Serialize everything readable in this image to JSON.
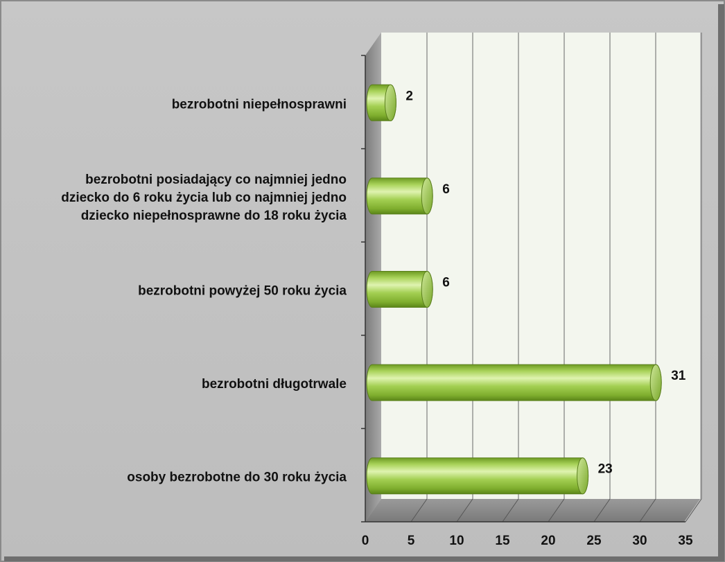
{
  "chart_data": {
    "type": "bar",
    "orientation": "horizontal",
    "style": "3d-cylinder",
    "categories": [
      [
        "bezrobotni niepełnosprawni"
      ],
      [
        "bezrobotni posiadający co najmniej jedno",
        "dziecko do 6 roku życia lub co najmniej jedno",
        "dziecko niepełnosprawne do 18 roku życia"
      ],
      [
        "bezrobotni powyżej 50 roku życia"
      ],
      [
        "bezrobotni długotrwale"
      ],
      [
        "osoby bezrobotne do 30 roku życia"
      ]
    ],
    "values": [
      2,
      6,
      6,
      31,
      23
    ],
    "xlim": [
      0,
      35
    ],
    "xticks": [
      0,
      5,
      10,
      15,
      20,
      25,
      30,
      35
    ],
    "grid": true,
    "legend": "none",
    "colors": {
      "bar": "#8fbf3a",
      "bar_light": "#d4ec9c",
      "bar_dark": "#5e8a1c",
      "plot_back": "#f3f6ee",
      "background": "#c0c0c0",
      "grid": "#555555"
    }
  }
}
